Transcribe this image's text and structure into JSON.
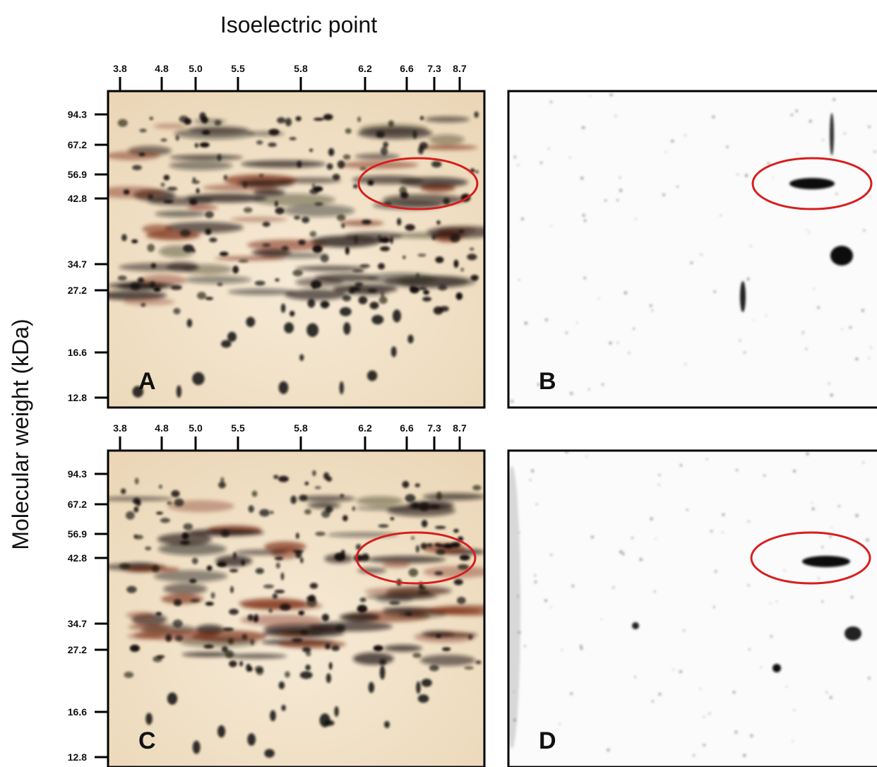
{
  "title": "Isoelectric point",
  "y_label": "Molecular weight (kDa)",
  "x_ticks": [
    "3.8",
    "4.8",
    "5.0",
    "5.5",
    "5.8",
    "6.2",
    "6.6",
    "7.3",
    "8.7"
  ],
  "y_ticks": [
    "94.3",
    "67.2",
    "56.9",
    "42.8",
    "34.7",
    "27.2",
    "16.6",
    "12.8"
  ],
  "panels": [
    {
      "label": "A"
    },
    {
      "label": "B"
    },
    {
      "label": "C"
    },
    {
      "label": "D"
    }
  ]
}
